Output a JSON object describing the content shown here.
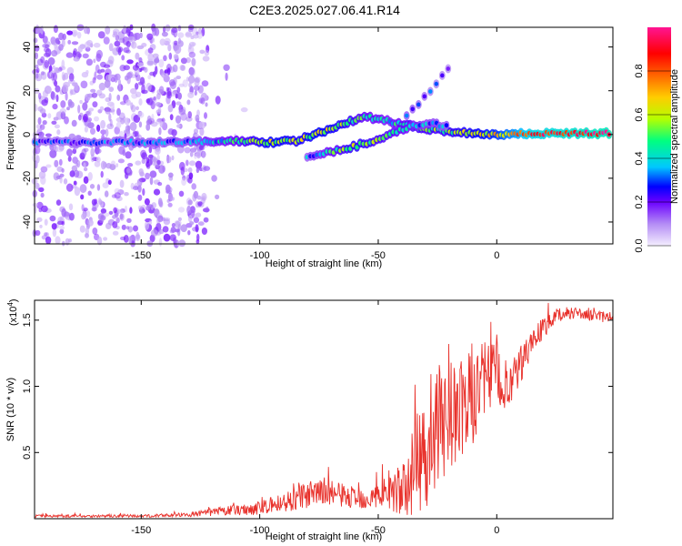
{
  "title": "C2E3.2025.027.06.41.R14",
  "chart_data": [
    {
      "type": "heatmap",
      "xlabel": "Height of straight line (km)",
      "ylabel": "Frequency (Hz)",
      "xlim": [
        -195,
        49
      ],
      "ylim": [
        -50,
        49
      ],
      "xticks": [
        -150,
        -100,
        -50,
        0
      ],
      "yticks": [
        -40,
        -20,
        0,
        20,
        40
      ],
      "colorbar": {
        "label": "Normalized spectral amplitude",
        "range": [
          0,
          1
        ],
        "ticks": [
          "0.0",
          "0.2",
          "0.4",
          "0.6",
          "0.8"
        ],
        "tick_values": [
          0.0,
          0.2,
          0.4,
          0.6,
          0.8
        ],
        "colormap": [
          "#f4eefe",
          "#b48cf5",
          "#6b00ff",
          "#0000ff",
          "#00c8ff",
          "#00ff80",
          "#b4ff00",
          "#ffcc00",
          "#ff6600",
          "#ff0000",
          "#ff1493"
        ]
      },
      "main_branch": [
        {
          "x": -195,
          "y": -3.5,
          "amp": 0.25
        },
        {
          "x": -160,
          "y": -3.5,
          "amp": 0.28
        },
        {
          "x": -130,
          "y": -3.5,
          "amp": 0.32
        },
        {
          "x": -110,
          "y": -3.0,
          "amp": 0.45
        },
        {
          "x": -95,
          "y": -3.5,
          "amp": 0.6
        },
        {
          "x": -85,
          "y": -3.0,
          "amp": 0.55
        },
        {
          "x": -75,
          "y": 0.5,
          "amp": 0.6
        },
        {
          "x": -65,
          "y": 5.0,
          "amp": 0.55
        },
        {
          "x": -55,
          "y": 8.0,
          "amp": 0.45
        },
        {
          "x": -45,
          "y": 6.0,
          "amp": 0.4
        },
        {
          "x": -35,
          "y": 3.5,
          "amp": 0.5
        },
        {
          "x": -25,
          "y": 2.0,
          "amp": 0.5
        },
        {
          "x": -15,
          "y": 1.0,
          "amp": 0.55
        },
        {
          "x": 0,
          "y": 0.0,
          "amp": 0.65
        },
        {
          "x": 15,
          "y": 0.5,
          "amp": 0.85
        },
        {
          "x": 48,
          "y": 0.5,
          "amp": 0.95
        }
      ],
      "secondary_branch": [
        {
          "x": -80,
          "y": -10.0,
          "amp": 0.3
        },
        {
          "x": -70,
          "y": -8.0,
          "amp": 0.45
        },
        {
          "x": -60,
          "y": -5.5,
          "amp": 0.55
        },
        {
          "x": -50,
          "y": -2.0,
          "amp": 0.5
        },
        {
          "x": -40,
          "y": 2.5,
          "amp": 0.45
        },
        {
          "x": -30,
          "y": 5.0,
          "amp": 0.35
        },
        {
          "x": -20,
          "y": 4.0,
          "amp": 0.3
        }
      ],
      "upper_wisp": [
        {
          "x": -38,
          "y": 8.0,
          "amp": 0.3
        },
        {
          "x": -30,
          "y": 18.0,
          "amp": 0.25
        },
        {
          "x": -20,
          "y": 30.0,
          "amp": 0.2
        }
      ],
      "noise_region": {
        "x": [
          -195,
          -122
        ],
        "note": "scattered low-amplitude noise"
      }
    },
    {
      "type": "line",
      "xlabel": "Height of straight line (km)",
      "ylabel": "SNR (10 * v/v)",
      "multiplier_label": "(x10",
      "multiplier_exp": "4",
      "multiplier_close": ")",
      "xlim": [
        -195,
        49
      ],
      "ylim": [
        0.0,
        1.65
      ],
      "xticks": [
        -150,
        -100,
        -50,
        0
      ],
      "yticks": [
        0.5,
        1.0,
        1.5
      ],
      "ytick_labels": [
        "0.5",
        "1.0",
        "1.5"
      ],
      "color": "#e8312b",
      "envelope_x": [
        -195,
        -150,
        -130,
        -120,
        -100,
        -90,
        -80,
        -70,
        -60,
        -50,
        -45,
        -40,
        -35,
        -30,
        -25,
        -20,
        -15,
        -10,
        -5,
        0,
        5,
        10,
        15,
        20,
        25,
        30,
        35,
        40,
        49
      ],
      "envelope_mean": [
        0.02,
        0.02,
        0.03,
        0.05,
        0.08,
        0.12,
        0.18,
        0.2,
        0.15,
        0.17,
        0.22,
        0.2,
        0.35,
        0.55,
        0.65,
        0.8,
        0.8,
        0.95,
        1.05,
        1.1,
        0.95,
        1.15,
        1.35,
        1.45,
        1.52,
        1.56,
        1.55,
        1.53,
        1.52
      ],
      "envelope_amp": [
        0.01,
        0.01,
        0.015,
        0.03,
        0.05,
        0.08,
        0.1,
        0.1,
        0.08,
        0.1,
        0.15,
        0.2,
        0.35,
        0.5,
        0.45,
        0.45,
        0.4,
        0.4,
        0.3,
        0.25,
        0.2,
        0.15,
        0.1,
        0.08,
        0.06,
        0.05,
        0.04,
        0.04,
        0.04
      ]
    }
  ]
}
